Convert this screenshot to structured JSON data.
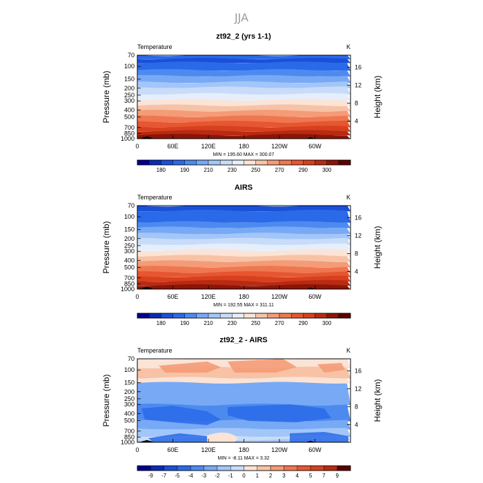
{
  "figure_title": "JJA",
  "chart_data": [
    {
      "type": "heatmap",
      "title": "zt92_2 (yrs 1-1)",
      "variable_label": "Temperature",
      "units": "K",
      "ylabel": "Pressure (mb)",
      "ylabel_right": "Height (km)",
      "x_ticks": [
        "0",
        "60E",
        "120E",
        "180",
        "120W",
        "60W"
      ],
      "x_tick_lon": [
        0,
        60,
        120,
        180,
        240,
        300
      ],
      "xlim": [
        0,
        360
      ],
      "pressure_ticks": [
        70,
        100,
        150,
        200,
        250,
        300,
        400,
        500,
        700,
        850,
        1000
      ],
      "ylim": [
        1000,
        70
      ],
      "y_scale": "log",
      "height_ticks": [
        4,
        8,
        12,
        16
      ],
      "stats_text": "MIN =  195.60   MAX =  300.07",
      "colorbar_labels": [
        "180",
        "190",
        "210",
        "230",
        "250",
        "270",
        "290",
        "300"
      ],
      "colorbar_colors": [
        "#00008f",
        "#0a2bb5",
        "#1a4fd8",
        "#2a6ae8",
        "#4d8af0",
        "#78a9f5",
        "#a2c6f8",
        "#c8dcfa",
        "#e6eefb",
        "#fbe3d6",
        "#f7c2a6",
        "#f49b77",
        "#ef7750",
        "#e65631",
        "#d7401e",
        "#b82a12",
        "#8c1508",
        "#5c0000"
      ],
      "levels": [
        170,
        180,
        185,
        190,
        200,
        210,
        220,
        230,
        240,
        250,
        260,
        270,
        275,
        280,
        285,
        290,
        295,
        300,
        310
      ]
    },
    {
      "type": "heatmap",
      "title": "AIRS",
      "variable_label": "Temperature",
      "units": "K",
      "ylabel": "Pressure (mb)",
      "ylabel_right": "Height (km)",
      "x_ticks": [
        "0",
        "60E",
        "120E",
        "180",
        "120W",
        "60W"
      ],
      "x_tick_lon": [
        0,
        60,
        120,
        180,
        240,
        300
      ],
      "xlim": [
        0,
        360
      ],
      "pressure_ticks": [
        70,
        100,
        150,
        200,
        250,
        300,
        400,
        500,
        700,
        850,
        1000
      ],
      "ylim": [
        1000,
        70
      ],
      "y_scale": "log",
      "height_ticks": [
        4,
        8,
        12,
        16
      ],
      "stats_text": "MIN =  192.55   MAX =  311.11",
      "colorbar_labels": [
        "180",
        "190",
        "210",
        "230",
        "250",
        "270",
        "290",
        "300"
      ],
      "colorbar_colors": [
        "#00008f",
        "#0a2bb5",
        "#1a4fd8",
        "#2a6ae8",
        "#4d8af0",
        "#78a9f5",
        "#a2c6f8",
        "#c8dcfa",
        "#e6eefb",
        "#fbe3d6",
        "#f7c2a6",
        "#f49b77",
        "#ef7750",
        "#e65631",
        "#d7401e",
        "#b82a12",
        "#8c1508",
        "#5c0000"
      ],
      "levels": [
        170,
        180,
        185,
        190,
        200,
        210,
        220,
        230,
        240,
        250,
        260,
        270,
        275,
        280,
        285,
        290,
        295,
        300,
        310
      ]
    },
    {
      "type": "heatmap",
      "title": "zt92_2 - AIRS",
      "variable_label": "Temperature",
      "units": "K",
      "ylabel": "Pressure (mb)",
      "ylabel_right": "Height (km)",
      "x_ticks": [
        "0",
        "60E",
        "120E",
        "180",
        "120W",
        "60W"
      ],
      "x_tick_lon": [
        0,
        60,
        120,
        180,
        240,
        300
      ],
      "xlim": [
        0,
        360
      ],
      "pressure_ticks": [
        70,
        100,
        150,
        200,
        250,
        300,
        400,
        500,
        700,
        850,
        1000
      ],
      "ylim": [
        1000,
        70
      ],
      "y_scale": "log",
      "height_ticks": [
        4,
        8,
        12,
        16
      ],
      "stats_text": "MIN =  -8.11   MAX =    3.32",
      "colorbar_labels": [
        "-9",
        "-7",
        "-5",
        "-4",
        "-3",
        "-2",
        "-1",
        "0",
        "1",
        "2",
        "3",
        "4",
        "5",
        "7",
        "9"
      ],
      "colorbar_colors": [
        "#00008f",
        "#0a2bb5",
        "#1a4fd8",
        "#2a6ae8",
        "#4d8af0",
        "#78a9f5",
        "#a2c6f8",
        "#c8dcfa",
        "#fbe3d6",
        "#f7c2a6",
        "#f49b77",
        "#ef7750",
        "#e65631",
        "#d7401e",
        "#b82a12",
        "#5c0000"
      ],
      "levels": [
        -9,
        -7,
        -5,
        -4,
        -3,
        -2,
        -1,
        0,
        1,
        2,
        3,
        4,
        5,
        7,
        9
      ]
    }
  ]
}
